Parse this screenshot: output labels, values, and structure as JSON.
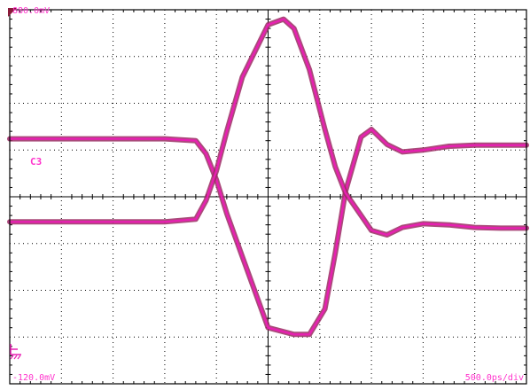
{
  "chart_data": {
    "type": "line",
    "xlabel": "",
    "ylabel": "",
    "y_top_label": "880.0mV",
    "y_bottom_label": "-120.0mV",
    "timebase_label": "500.0ps/div",
    "channel_label": "C3",
    "ylim_mV": [
      -120,
      880
    ],
    "xlim_divisions": [
      0,
      10
    ],
    "x_divisions": 10,
    "y_divisions": 8,
    "grid": true,
    "colors": {
      "trace": "#e81fb2",
      "trace_dark": "#9b2a63",
      "grid": "#000000",
      "labels": "#ff33cc",
      "marker": "#8b1a3a"
    },
    "series": [
      {
        "x": [
          0.0,
          1.5,
          3.0,
          3.6,
          3.8,
          4.0,
          4.2,
          4.5,
          5.0,
          5.5,
          5.8,
          6.1,
          6.3,
          6.5,
          6.8,
          7.0,
          7.3,
          7.6,
          8.0,
          8.5,
          9.0,
          9.5,
          10.0
        ],
        "y": [
          535,
          535,
          535,
          530,
          495,
          425,
          335,
          220,
          30,
          12,
          12,
          80,
          230,
          395,
          540,
          560,
          520,
          500,
          505,
          515,
          518,
          518,
          518
        ]
      },
      {
        "x": [
          0.0,
          1.5,
          3.0,
          3.6,
          3.8,
          4.0,
          4.2,
          4.5,
          5.0,
          5.3,
          5.5,
          5.8,
          6.1,
          6.3,
          6.5,
          6.8,
          7.0,
          7.3,
          7.6,
          8.0,
          8.5,
          9.0,
          9.5,
          10.0
        ],
        "y": [
          313,
          313,
          313,
          320,
          370,
          450,
          555,
          700,
          840,
          855,
          830,
          720,
          560,
          460,
          390,
          330,
          290,
          278,
          298,
          308,
          305,
          298,
          296,
          296
        ]
      }
    ]
  }
}
